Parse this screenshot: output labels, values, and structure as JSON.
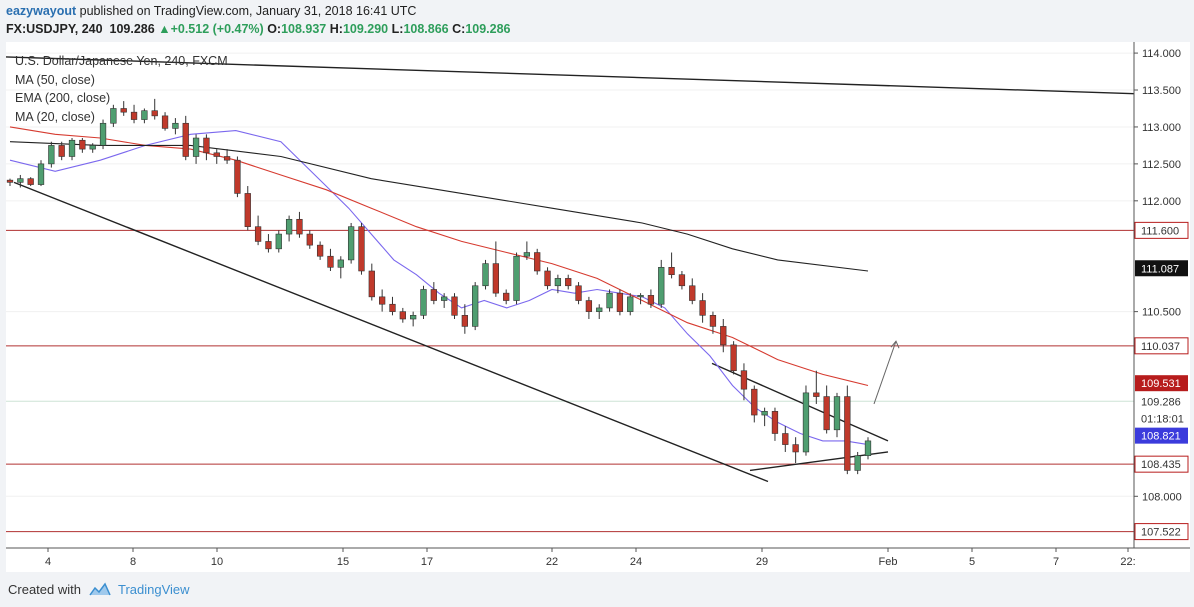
{
  "header": {
    "author": "eazywayout",
    "published_text": "published on TradingView.com, January 31, 2018 16:41 UTC",
    "symbol": "FX:USDJPY, 240",
    "last": "109.286",
    "change": "+0.512 (+0.47%)",
    "o_label": "O:",
    "o_value": "108.937",
    "h_label": "H:",
    "h_value": "109.290",
    "l_label": "L:",
    "l_value": "108.866",
    "c_label": "C:",
    "c_value": "109.286"
  },
  "legend": {
    "title": "U.S. Dollar/Japanese Yen, 240, FXCM",
    "ma50": "MA (50, close)",
    "ema200": "EMA (200, close)",
    "ma20": "MA (20, close)"
  },
  "footer": {
    "created_with": "Created with",
    "brand": "TradingView"
  },
  "colors": {
    "up": "#4f9e70",
    "down": "#c0392b",
    "ma20": "#7b68ee",
    "ma50": "#d63b30",
    "ema200": "#222222",
    "hline": "#b03030",
    "badge_red": "#b71c1c",
    "badge_blue": "#3b3bdc",
    "badge_black": "#111111"
  },
  "chart_data": {
    "type": "candlestick",
    "title": "U.S. Dollar/Japanese Yen, 240, FXCM",
    "ylim": [
      107.3,
      114.15
    ],
    "yticks": [
      "114.000",
      "113.500",
      "113.000",
      "112.500",
      "112.000",
      "110.500",
      "108.000"
    ],
    "xticks": [
      "4",
      "8",
      "10",
      "15",
      "17",
      "22",
      "24",
      "29",
      "Feb",
      "5",
      "7",
      "22:"
    ],
    "horizontal_levels": [
      111.6,
      110.037,
      108.435,
      107.522
    ],
    "price_badges": [
      {
        "label": "111.600",
        "style": "red-outline"
      },
      {
        "label": "111.087",
        "style": "black"
      },
      {
        "label": "110.037",
        "style": "red-outline"
      },
      {
        "label": "109.531",
        "style": "red"
      },
      {
        "label": "109.286",
        "style": "plain"
      },
      {
        "label": "01:18:01",
        "style": "plain"
      },
      {
        "label": "108.821",
        "style": "blue"
      },
      {
        "label": "108.435",
        "style": "red-outline"
      },
      {
        "label": "107.522",
        "style": "red-outline"
      }
    ],
    "series": [
      {
        "name": "MA (20, close)",
        "color": "#7b68ee",
        "points": [
          [
            0,
            112.55
          ],
          [
            10,
            112.4
          ],
          [
            20,
            112.55
          ],
          [
            30,
            112.75
          ],
          [
            40,
            112.9
          ],
          [
            50,
            112.95
          ],
          [
            60,
            112.8
          ],
          [
            65,
            112.5
          ],
          [
            70,
            112.2
          ],
          [
            75,
            111.9
          ],
          [
            80,
            111.55
          ],
          [
            85,
            111.2
          ],
          [
            90,
            111.0
          ],
          [
            95,
            110.75
          ],
          [
            100,
            110.55
          ],
          [
            105,
            110.65
          ],
          [
            110,
            110.55
          ],
          [
            115,
            110.65
          ],
          [
            120,
            110.8
          ],
          [
            125,
            110.75
          ],
          [
            130,
            110.8
          ],
          [
            135,
            110.75
          ],
          [
            140,
            110.7
          ],
          [
            145,
            110.55
          ],
          [
            150,
            110.2
          ],
          [
            155,
            109.9
          ],
          [
            160,
            109.5
          ],
          [
            165,
            109.2
          ],
          [
            170,
            109.0
          ],
          [
            175,
            108.85
          ],
          [
            180,
            108.75
          ],
          [
            185,
            108.75
          ],
          [
            190,
            108.7
          ]
        ]
      },
      {
        "name": "MA (50, close)",
        "color": "#d63b30",
        "points": [
          [
            0,
            113.0
          ],
          [
            10,
            112.9
          ],
          [
            20,
            112.85
          ],
          [
            30,
            112.75
          ],
          [
            40,
            112.7
          ],
          [
            50,
            112.55
          ],
          [
            60,
            112.35
          ],
          [
            70,
            112.15
          ],
          [
            80,
            111.9
          ],
          [
            90,
            111.65
          ],
          [
            100,
            111.45
          ],
          [
            110,
            111.3
          ],
          [
            120,
            111.15
          ],
          [
            130,
            110.95
          ],
          [
            140,
            110.65
          ],
          [
            150,
            110.35
          ],
          [
            160,
            110.15
          ],
          [
            170,
            109.85
          ],
          [
            180,
            109.65
          ],
          [
            190,
            109.5
          ]
        ]
      },
      {
        "name": "EMA (200, close)",
        "color": "#222222",
        "points": [
          [
            0,
            112.8
          ],
          [
            20,
            112.75
          ],
          [
            40,
            112.75
          ],
          [
            60,
            112.6
          ],
          [
            80,
            112.3
          ],
          [
            100,
            112.1
          ],
          [
            120,
            111.9
          ],
          [
            140,
            111.7
          ],
          [
            150,
            111.55
          ],
          [
            160,
            111.35
          ],
          [
            170,
            111.2
          ],
          [
            190,
            111.05
          ]
        ]
      }
    ],
    "candles": [
      [
        112.28,
        112.3,
        112.2,
        112.25
      ],
      [
        112.25,
        112.35,
        112.18,
        112.3
      ],
      [
        112.3,
        112.32,
        112.2,
        112.22
      ],
      [
        112.22,
        112.55,
        112.2,
        112.5
      ],
      [
        112.5,
        112.8,
        112.45,
        112.75
      ],
      [
        112.75,
        112.8,
        112.55,
        112.6
      ],
      [
        112.6,
        112.85,
        112.55,
        112.82
      ],
      [
        112.82,
        112.85,
        112.65,
        112.7
      ],
      [
        112.7,
        112.78,
        112.65,
        112.75
      ],
      [
        112.75,
        113.1,
        112.7,
        113.05
      ],
      [
        113.05,
        113.3,
        113.0,
        113.25
      ],
      [
        113.25,
        113.35,
        113.15,
        113.2
      ],
      [
        113.2,
        113.3,
        113.05,
        113.1
      ],
      [
        113.1,
        113.25,
        113.05,
        113.22
      ],
      [
        113.22,
        113.38,
        113.1,
        113.15
      ],
      [
        113.15,
        113.2,
        112.95,
        112.98
      ],
      [
        112.98,
        113.12,
        112.9,
        113.05
      ],
      [
        113.05,
        113.15,
        112.55,
        112.6
      ],
      [
        112.6,
        112.9,
        112.5,
        112.85
      ],
      [
        112.85,
        112.9,
        112.55,
        112.65
      ],
      [
        112.65,
        112.7,
        112.5,
        112.6
      ],
      [
        112.6,
        112.7,
        112.5,
        112.55
      ],
      [
        112.55,
        112.6,
        112.05,
        112.1
      ],
      [
        112.1,
        112.2,
        111.6,
        111.65
      ],
      [
        111.65,
        111.8,
        111.4,
        111.45
      ],
      [
        111.45,
        111.55,
        111.3,
        111.35
      ],
      [
        111.35,
        111.6,
        111.3,
        111.55
      ],
      [
        111.55,
        111.8,
        111.45,
        111.75
      ],
      [
        111.75,
        111.85,
        111.5,
        111.55
      ],
      [
        111.55,
        111.6,
        111.35,
        111.4
      ],
      [
        111.4,
        111.45,
        111.2,
        111.25
      ],
      [
        111.25,
        111.35,
        111.05,
        111.1
      ],
      [
        111.1,
        111.25,
        110.95,
        111.2
      ],
      [
        111.2,
        111.7,
        111.15,
        111.65
      ],
      [
        111.65,
        111.7,
        111.0,
        111.05
      ],
      [
        111.05,
        111.15,
        110.65,
        110.7
      ],
      [
        110.7,
        110.8,
        110.5,
        110.6
      ],
      [
        110.6,
        110.7,
        110.45,
        110.5
      ],
      [
        110.5,
        110.55,
        110.35,
        110.4
      ],
      [
        110.4,
        110.5,
        110.3,
        110.45
      ],
      [
        110.45,
        110.85,
        110.4,
        110.8
      ],
      [
        110.8,
        110.9,
        110.6,
        110.65
      ],
      [
        110.65,
        110.75,
        110.55,
        110.7
      ],
      [
        110.7,
        110.75,
        110.4,
        110.45
      ],
      [
        110.45,
        110.6,
        110.2,
        110.3
      ],
      [
        110.3,
        110.9,
        110.25,
        110.85
      ],
      [
        110.85,
        111.2,
        110.8,
        111.15
      ],
      [
        111.15,
        111.45,
        110.7,
        110.75
      ],
      [
        110.75,
        110.8,
        110.6,
        110.65
      ],
      [
        110.65,
        111.3,
        110.6,
        111.25
      ],
      [
        111.25,
        111.45,
        111.2,
        111.3
      ],
      [
        111.3,
        111.35,
        111.0,
        111.05
      ],
      [
        111.05,
        111.1,
        110.8,
        110.85
      ],
      [
        110.85,
        111.0,
        110.75,
        110.95
      ],
      [
        110.95,
        111.0,
        110.8,
        110.85
      ],
      [
        110.85,
        110.9,
        110.6,
        110.65
      ],
      [
        110.65,
        110.7,
        110.4,
        110.5
      ],
      [
        110.5,
        110.6,
        110.4,
        110.55
      ],
      [
        110.55,
        110.8,
        110.5,
        110.75
      ],
      [
        110.75,
        110.8,
        110.45,
        110.5
      ],
      [
        110.5,
        110.75,
        110.45,
        110.7
      ],
      [
        110.7,
        110.75,
        110.6,
        110.72
      ],
      [
        110.72,
        110.8,
        110.55,
        110.6
      ],
      [
        110.6,
        111.2,
        110.55,
        111.1
      ],
      [
        111.1,
        111.3,
        110.95,
        111.0
      ],
      [
        111.0,
        111.05,
        110.8,
        110.85
      ],
      [
        110.85,
        110.95,
        110.6,
        110.65
      ],
      [
        110.65,
        110.75,
        110.35,
        110.45
      ],
      [
        110.45,
        110.5,
        110.2,
        110.3
      ],
      [
        110.3,
        110.4,
        109.95,
        110.05
      ],
      [
        110.05,
        110.1,
        109.65,
        109.7
      ],
      [
        109.7,
        109.8,
        109.3,
        109.45
      ],
      [
        109.45,
        109.5,
        109.0,
        109.1
      ],
      [
        109.1,
        109.2,
        108.95,
        109.15
      ],
      [
        109.15,
        109.2,
        108.75,
        108.85
      ],
      [
        108.85,
        108.95,
        108.6,
        108.7
      ],
      [
        108.7,
        108.8,
        108.45,
        108.6
      ],
      [
        108.6,
        109.5,
        108.55,
        109.4
      ],
      [
        109.4,
        109.7,
        109.25,
        109.35
      ],
      [
        109.35,
        109.5,
        108.85,
        108.9
      ],
      [
        108.9,
        109.4,
        108.8,
        109.35
      ],
      [
        109.35,
        109.5,
        108.3,
        108.35
      ],
      [
        108.35,
        108.6,
        108.3,
        108.55
      ],
      [
        108.55,
        108.8,
        108.5,
        108.75
      ]
    ]
  }
}
